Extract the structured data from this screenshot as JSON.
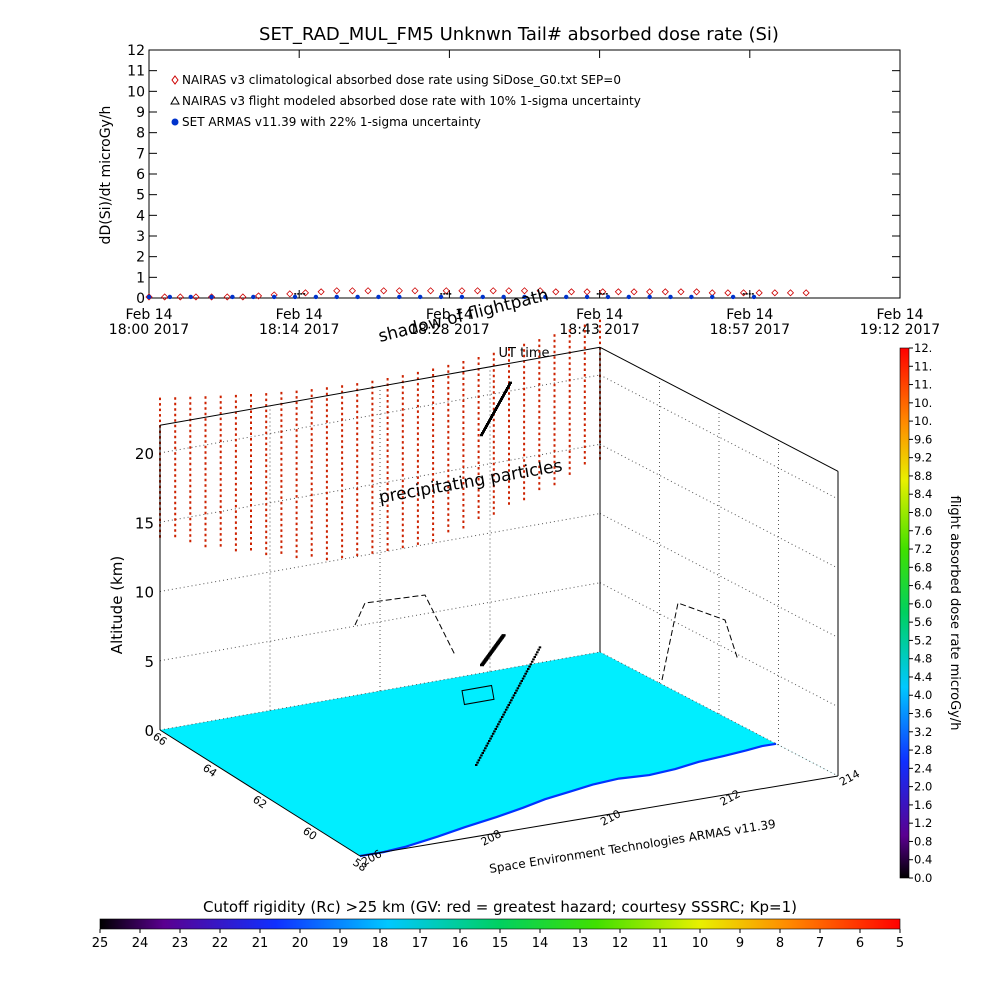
{
  "title": "SET_RAD_MUL_FM5 Unknwn Tail#  absorbed dose rate (Si)",
  "top_chart": {
    "ylabel": "dD(Si)/dt microGy/h",
    "xlabel": "UT time",
    "y_ticks": [
      "0",
      "1",
      "2",
      "3",
      "4",
      "5",
      "6",
      "7",
      "8",
      "9",
      "10",
      "11",
      "12"
    ],
    "x_ticks": [
      {
        "date": "Feb 14",
        "time": "18:00 2017"
      },
      {
        "date": "Feb 14",
        "time": "18:14 2017"
      },
      {
        "date": "Feb 14",
        "time": "18:28 2017"
      },
      {
        "date": "Feb 14",
        "time": "18:43 2017"
      },
      {
        "date": "Feb 14",
        "time": "18:57 2017"
      },
      {
        "date": "Feb 14",
        "time": "19:12 2017"
      }
    ],
    "legend": [
      {
        "label": "NAIRAS v3 climatological absorbed dose rate using SiDose_G0.txt SEP=0",
        "color": "#cc0000",
        "marker": "diamond"
      },
      {
        "label": "NAIRAS v3 flight modeled absorbed dose rate with 10% 1-sigma uncertainty",
        "color": "#000000",
        "marker": "triangle"
      },
      {
        "label": "SET ARMAS v11.39 with 22% 1-sigma uncertainty",
        "color": "#0033cc",
        "marker": "dot"
      }
    ]
  },
  "chart_data": {
    "type": "scatter",
    "title": "SET_RAD_MUL_FM5 Unknwn Tail#  absorbed dose rate (Si)",
    "ylabel": "dD(Si)/dt microGy/h",
    "xlabel": "UT time",
    "x_unit": "minutes after 18:00 UT, Feb 14 2017",
    "xlim": [
      0,
      72
    ],
    "ylim": [
      0,
      12
    ],
    "series": [
      {
        "name": "NAIRAS v3 climatological absorbed dose rate using SiDose_G0.txt SEP=0",
        "x": [
          0,
          1.5,
          3,
          4.5,
          6,
          7.5,
          9,
          10.5,
          12,
          13.5,
          15,
          16.5,
          18,
          19.5,
          21,
          22.5,
          24,
          25.5,
          27,
          28.5,
          30,
          31.5,
          33,
          34.5,
          36,
          37.5,
          39,
          40.5,
          42,
          43.5,
          45,
          46.5,
          48,
          49.5,
          51,
          52.5,
          54,
          55.5,
          57,
          58.5,
          60,
          61.5,
          63
        ],
        "y": [
          0.05,
          0.05,
          0.05,
          0.05,
          0.05,
          0.05,
          0.05,
          0.1,
          0.15,
          0.2,
          0.25,
          0.3,
          0.35,
          0.35,
          0.35,
          0.35,
          0.35,
          0.35,
          0.35,
          0.35,
          0.35,
          0.35,
          0.35,
          0.35,
          0.35,
          0.35,
          0.3,
          0.3,
          0.3,
          0.3,
          0.3,
          0.3,
          0.3,
          0.3,
          0.3,
          0.3,
          0.25,
          0.25,
          0.25,
          0.25,
          0.25,
          0.25,
          0.25
        ]
      },
      {
        "name": "NAIRAS v3 flight modeled absorbed dose rate with 10% 1-sigma uncertainty",
        "x": [
          14.5,
          28.5,
          43.5,
          57.5
        ],
        "y": [
          0.2,
          0.2,
          0.2,
          0.2
        ]
      },
      {
        "name": "SET ARMAS v11.39 with 22% 1-sigma uncertainty",
        "x": [
          0,
          2,
          4,
          6,
          8,
          10,
          12,
          14,
          16,
          18,
          20,
          22,
          24,
          26,
          28,
          30,
          32,
          34,
          36,
          38,
          40,
          42,
          44,
          46,
          48,
          50,
          52,
          54,
          56,
          58
        ],
        "y": [
          0.05,
          0.05,
          0.05,
          0.05,
          0.05,
          0.05,
          0.05,
          0.05,
          0.05,
          0.05,
          0.05,
          0.05,
          0.05,
          0.05,
          0.05,
          0.05,
          0.05,
          0.05,
          0.05,
          0.05,
          0.05,
          0.05,
          0.05,
          0.05,
          0.05,
          0.05,
          0.05,
          0.05,
          0.05,
          0.05
        ]
      }
    ]
  },
  "panel3d": {
    "zlabel": "Altitude (km)",
    "z_ticks": [
      "0",
      "5",
      "10",
      "15",
      "20"
    ],
    "lat_ticks": [
      "58",
      "60",
      "62",
      "64",
      "66"
    ],
    "lon_ticks": [
      "206",
      "208",
      "210",
      "212",
      "214"
    ],
    "annotation_shadow": "shadow of flightpath",
    "annotation_precip": "precipitating particles",
    "credit": "Space Environment Technologies ARMAS v11.39",
    "map_ocean_color": "#00eeff",
    "map_land_color": "#ffffff",
    "coast_color": "#0033ff"
  },
  "dose_colorbar": {
    "label": "flight absorbed dose rate microGy/h",
    "ticks": [
      "0.0",
      "0.4",
      "0.8",
      "1.2",
      "1.6",
      "2.0",
      "2.4",
      "2.8",
      "3.2",
      "3.6",
      "4.0",
      "4.4",
      "4.8",
      "5.2",
      "5.6",
      "6.0",
      "6.4",
      "6.8",
      "7.2",
      "7.6",
      "8.0",
      "8.4",
      "8.8",
      "9.2",
      "9.6",
      "10.",
      "10.",
      "11.",
      "11.",
      "12."
    ]
  },
  "rigidity_colorbar": {
    "label": "Cutoff rigidity (Rc) >25 km (GV: red = greatest hazard; courtesy SSSRC; Kp=1)",
    "ticks": [
      "25",
      "24",
      "23",
      "22",
      "21",
      "20",
      "19",
      "18",
      "17",
      "16",
      "15",
      "14",
      "13",
      "12",
      "11",
      "10",
      "9",
      "8",
      "7",
      "6",
      "5"
    ]
  }
}
